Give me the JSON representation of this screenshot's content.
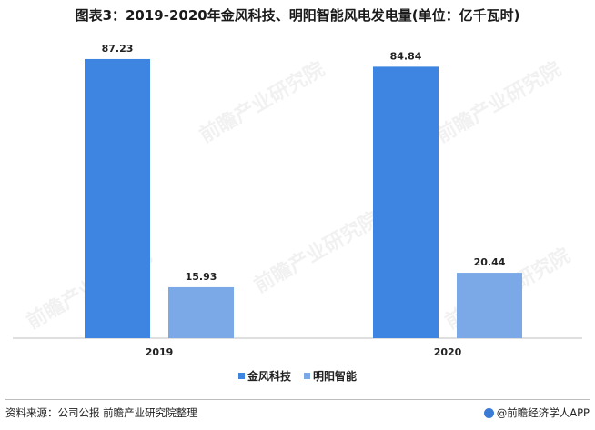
{
  "title": "图表3：2019-2020年金风科技、明阳智能风电发电量(单位：亿千瓦时)",
  "chart_data": {
    "type": "bar",
    "categories": [
      "2019",
      "2020"
    ],
    "series": [
      {
        "name": "金风科技",
        "color": "#3d85e0",
        "values": [
          87.23,
          84.84
        ]
      },
      {
        "name": "明阳智能",
        "color": "#7ba9e8",
        "values": [
          15.93,
          20.44
        ]
      }
    ],
    "title": "图表3：2019-2020年金风科技、明阳智能风电发电量(单位：亿千瓦时)",
    "ylim": [
      0,
      100
    ],
    "grid": false,
    "legend_position": "bottom-center"
  },
  "footer": {
    "source": "资料来源：公司公报 前瞻产业研究院整理",
    "brand": "@前瞻经济学人APP",
    "brand_icon": "brand-logo-icon"
  },
  "watermark_text": "前瞻产业研究院"
}
